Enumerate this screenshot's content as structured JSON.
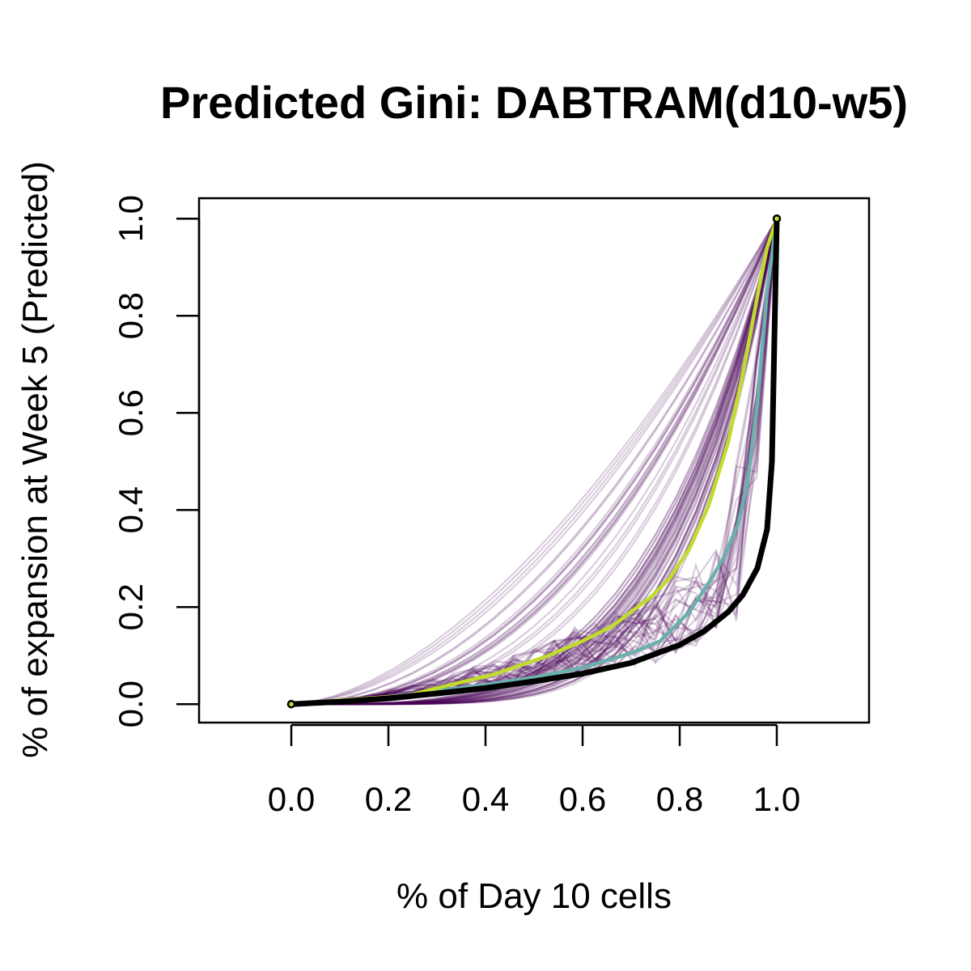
{
  "chart_data": {
    "type": "line",
    "title": "Predicted Gini: DABTRAM(d10-w5)",
    "xlabel": "% of Day 10 cells",
    "ylabel": "% of expansion at Week 5 (Predicted)",
    "xlim": [
      -0.19,
      1.19
    ],
    "ylim": [
      -0.038,
      1.042
    ],
    "xticks": [
      "0.0",
      "0.2",
      "0.4",
      "0.6",
      "0.8",
      "1.0"
    ],
    "yticks": [
      "0.0",
      "0.2",
      "0.4",
      "0.6",
      "0.8",
      "1.0"
    ],
    "grid": false,
    "legend": "none",
    "background_curves": {
      "description_count": 90,
      "color": "#440154",
      "opacity": 0.2,
      "exponent_range": [
        1.6,
        6.0
      ],
      "fraction_bent": 0.25
    },
    "series": [
      {
        "color": "#6ab0ab",
        "x": [
          0,
          0.1,
          0.2,
          0.3,
          0.4,
          0.5,
          0.6,
          0.7,
          0.76,
          0.82,
          0.86,
          0.89,
          0.92,
          0.94,
          0.96,
          0.98,
          1.0
        ],
        "y": [
          0,
          0.007,
          0.015,
          0.027,
          0.04,
          0.055,
          0.075,
          0.105,
          0.13,
          0.19,
          0.25,
          0.3,
          0.37,
          0.46,
          0.62,
          0.85,
          1.0
        ]
      },
      {
        "color": "#c0dc2c",
        "x": [
          0,
          0.1,
          0.24,
          0.32,
          0.42,
          0.53,
          0.6,
          0.66,
          0.7,
          0.74,
          0.78,
          0.82,
          0.86,
          0.9,
          0.93,
          0.96,
          0.98,
          1.0
        ],
        "y": [
          0,
          0.008,
          0.018,
          0.038,
          0.062,
          0.1,
          0.13,
          0.16,
          0.19,
          0.22,
          0.26,
          0.32,
          0.41,
          0.54,
          0.68,
          0.84,
          0.94,
          1.0
        ]
      },
      {
        "color": "#000000",
        "x": [
          0,
          0.1,
          0.2,
          0.3,
          0.4,
          0.5,
          0.6,
          0.7,
          0.8,
          0.85,
          0.9,
          0.93,
          0.96,
          0.98,
          0.99,
          0.995,
          1.0
        ],
        "y": [
          0,
          0.005,
          0.012,
          0.022,
          0.033,
          0.047,
          0.063,
          0.085,
          0.122,
          0.15,
          0.19,
          0.225,
          0.28,
          0.36,
          0.5,
          0.75,
          1.0
        ]
      }
    ]
  }
}
